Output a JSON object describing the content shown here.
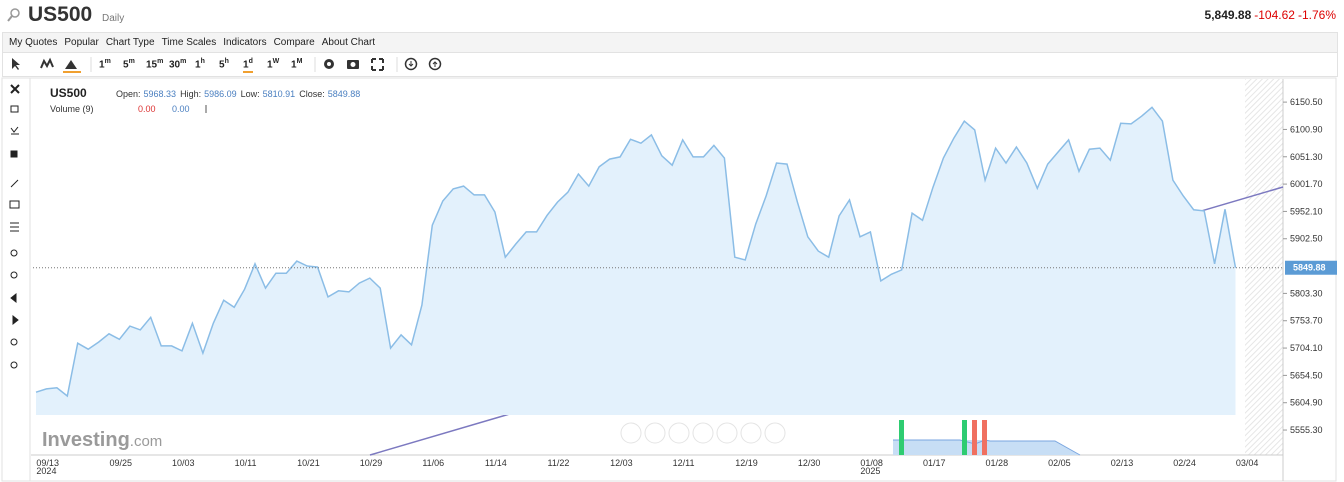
{
  "header": {
    "symbol": "US500",
    "interval": "Daily",
    "price": "5,849.88",
    "change": "-104.62",
    "change_pct": "-1.76%"
  },
  "menu": [
    "My Quotes",
    "Popular",
    "Chart Type",
    "Time Scales",
    "Indicators",
    "Compare",
    "About Chart"
  ],
  "timeframes": [
    {
      "n": "1",
      "u": "m"
    },
    {
      "n": "5",
      "u": "m"
    },
    {
      "n": "15",
      "u": "m"
    },
    {
      "n": "30",
      "u": "m"
    },
    {
      "n": "1",
      "u": "h"
    },
    {
      "n": "5",
      "u": "h"
    },
    {
      "n": "1",
      "u": "d"
    },
    {
      "n": "1",
      "u": "W"
    },
    {
      "n": "1",
      "u": "M"
    }
  ],
  "legend": {
    "symbol": "US500",
    "fields": [
      {
        "label": "Open:",
        "value": "5968.33"
      },
      {
        "label": "High:",
        "value": "5986.09"
      },
      {
        "label": "Low:",
        "value": "5810.91"
      },
      {
        "label": "Close:",
        "value": "5849.88"
      }
    ],
    "volume": "Volume (9)",
    "volume_values": [
      "0.00",
      "0.00"
    ]
  },
  "watermark": {
    "brand": "Investing",
    "suffix": ".com"
  },
  "chart_data": {
    "type": "line",
    "color": "#8bbde6",
    "fill": "#e3f1fc",
    "categories": [
      null,
      "09/13\n2024",
      null,
      null,
      null,
      null,
      null,
      null,
      "09/25",
      null,
      null,
      null,
      null,
      null,
      "10/03",
      null,
      null,
      null,
      null,
      null,
      "10/11",
      null,
      null,
      null,
      null,
      null,
      "10/21",
      null,
      null,
      null,
      null,
      null,
      "10/29",
      null,
      null,
      null,
      null,
      null,
      "11/06",
      null,
      null,
      null,
      null,
      null,
      "11/14",
      null,
      null,
      null,
      null,
      null,
      "11/22",
      null,
      null,
      null,
      null,
      null,
      "12/03",
      null,
      null,
      null,
      null,
      null,
      "12/11",
      null,
      null,
      null,
      null,
      null,
      "12/19",
      null,
      null,
      null,
      null,
      null,
      "12/30",
      null,
      null,
      null,
      null,
      null,
      "01/08\n2025",
      null,
      null,
      null,
      null,
      null,
      "01/17",
      null,
      null,
      null,
      null,
      null,
      "01/28",
      null,
      null,
      null,
      null,
      null,
      "02/05",
      null,
      null,
      null,
      null,
      null,
      "02/13",
      null,
      null,
      null,
      null,
      null,
      "02/24",
      null,
      null,
      null,
      null,
      null,
      "03/04"
    ],
    "values": [
      5624,
      5630,
      5632,
      5617,
      5713,
      5702,
      5715,
      5730,
      5720,
      5744,
      5737,
      5760,
      5708,
      5708,
      5699,
      5749,
      5695,
      5749,
      5791,
      5778,
      5811,
      5857,
      5813,
      5840,
      5840,
      5862,
      5853,
      5851,
      5797,
      5808,
      5806,
      5822,
      5831,
      5813,
      5704,
      5728,
      5710,
      5782,
      5927,
      5971,
      5993,
      5998,
      5982,
      5982,
      5951,
      5869,
      5893,
      5915,
      5915,
      5945,
      5969,
      5987,
      6020,
      5998,
      6033,
      6047,
      6051,
      6083,
      6076,
      6091,
      6053,
      6036,
      6082,
      6051,
      6051,
      6072,
      6049,
      5869,
      5864,
      5929,
      5980,
      6040,
      6038,
      5969,
      5906,
      5880,
      5869,
      5944,
      5973,
      5906,
      5915,
      5826,
      5838,
      5846,
      5949,
      5936,
      5996,
      6049,
      6085,
      6116,
      6100,
      6009,
      6067,
      6040,
      6069,
      6040,
      5994,
      6038,
      6060,
      6082,
      6025,
      6065,
      6067,
      6045,
      6112,
      6111,
      6125,
      6141,
      6116,
      6009,
      5980,
      5955,
      5953,
      5857,
      5956,
      5849.88,
      null
    ],
    "ylim": [
      5510,
      6187
    ],
    "yticks": [
      {
        "value": 5555.3,
        "label": "5555.30"
      },
      {
        "value": 5604.9,
        "label": "5604.90"
      },
      {
        "value": 5654.5,
        "label": "5654.50"
      },
      {
        "value": 5704.1,
        "label": "5704.10"
      },
      {
        "value": 5753.7,
        "label": "5753.70"
      },
      {
        "value": 5803.3,
        "label": "5803.30"
      },
      {
        "value": 5902.5,
        "label": "5902.50"
      },
      {
        "value": 5952.1,
        "label": "5952.10"
      },
      {
        "value": 6001.7,
        "label": "6001.70"
      },
      {
        "value": 6051.3,
        "label": "6051.30"
      },
      {
        "value": 6100.9,
        "label": "6100.90"
      },
      {
        "value": 6150.5,
        "label": "6150.50"
      }
    ]
  }
}
